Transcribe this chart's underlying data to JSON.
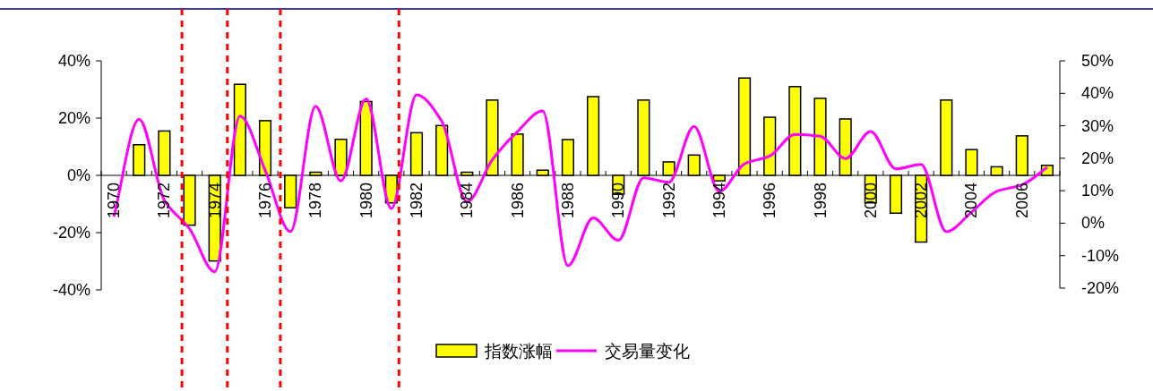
{
  "chart_data": {
    "type": "bar",
    "categories": [
      "1970",
      null,
      "1972",
      null,
      "1974",
      null,
      "1976",
      null,
      "1978",
      null,
      "1980",
      null,
      "1982",
      null,
      "1984",
      null,
      "1986",
      null,
      "1988",
      null,
      "1990",
      null,
      "1992",
      null,
      "1994",
      null,
      "1996",
      null,
      "1998",
      null,
      "2000",
      null,
      "2002",
      null,
      "2004",
      null,
      "2006",
      null
    ],
    "series": [
      {
        "name": "指数涨幅",
        "color": "#ffff00",
        "values": [
          null,
          10.7,
          15.5,
          -17.4,
          -29.9,
          31.8,
          19.1,
          -11.3,
          1.1,
          12.6,
          25.8,
          -9.6,
          14.9,
          17.4,
          1.1,
          26.3,
          14.4,
          1.8,
          12.5,
          27.5,
          -6.6,
          26.3,
          4.7,
          7.1,
          -1.9,
          34.0,
          20.3,
          31.0,
          26.9,
          19.7,
          -9.6,
          -13.2,
          -23.3,
          26.3,
          9.0,
          3.0,
          13.8,
          3.5
        ]
      },
      {
        "name": "交易量变化",
        "type": "line",
        "axis": "y2",
        "color": "#ff00ff",
        "values": [
          2.0,
          32.0,
          7.1,
          -1.7,
          -15.0,
          33.0,
          16.3,
          -2.6,
          36.0,
          13.0,
          38.3,
          4.5,
          39.5,
          31.4,
          6.6,
          19.5,
          28.2,
          34.6,
          -13.1,
          1.6,
          -5.3,
          14.0,
          12.6,
          29.8,
          9.8,
          18.3,
          20.7,
          27.3,
          26.8,
          19.9,
          28.2,
          16.7,
          18.1,
          -2.6,
          3.4,
          9.8,
          11.8,
          17.2
        ]
      }
    ],
    "ylim": [
      -40,
      40
    ],
    "yticks": [
      {
        "value": -40,
        "label": "-40%"
      },
      {
        "value": -20,
        "label": "-20%"
      },
      {
        "value": 0,
        "label": "0%"
      },
      {
        "value": 20,
        "label": "20%"
      },
      {
        "value": 40,
        "label": "40%"
      }
    ],
    "y2lim": [
      -20,
      50
    ],
    "y2ticks": [
      {
        "value": -20,
        "label": "-20%"
      },
      {
        "value": -10,
        "label": "-10%"
      },
      {
        "value": 0,
        "label": "0%"
      },
      {
        "value": 10,
        "label": "10%"
      },
      {
        "value": 20,
        "label": "20%"
      },
      {
        "value": 30,
        "label": "30%"
      },
      {
        "value": 40,
        "label": "40%"
      },
      {
        "value": 50,
        "label": "50%"
      }
    ],
    "grid": false,
    "legend": "bottom"
  }
}
